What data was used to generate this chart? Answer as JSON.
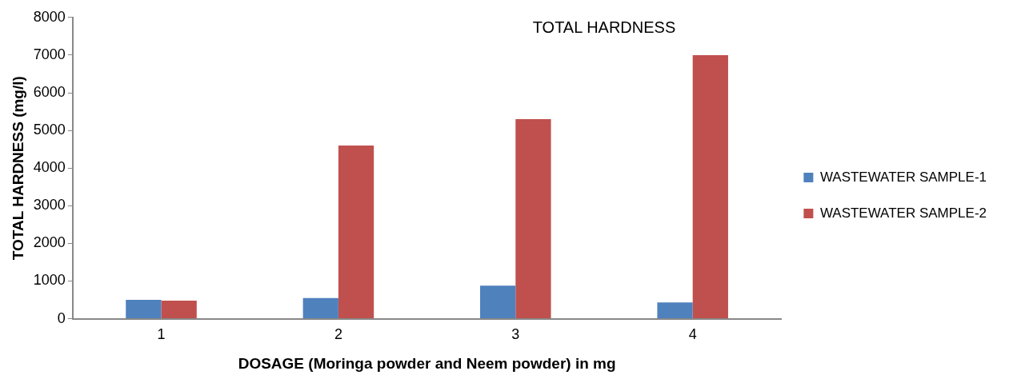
{
  "chart_data": {
    "type": "bar",
    "title": "TOTAL HARDNESS",
    "xlabel": "DOSAGE (Moringa powder and Neem powder) in mg",
    "ylabel": "TOTAL HARDNESS (mg/l)",
    "categories": [
      "1",
      "2",
      "3",
      "4"
    ],
    "series": [
      {
        "name": "WASTEWATER SAMPLE-1",
        "color": "#4f81bd",
        "values": [
          500,
          550,
          880,
          430
        ]
      },
      {
        "name": "WASTEWATER SAMPLE-2",
        "color": "#c0504d",
        "values": [
          480,
          4600,
          5300,
          7000
        ]
      }
    ],
    "ylim": [
      0,
      8000
    ],
    "yticks": [
      0,
      1000,
      2000,
      3000,
      4000,
      5000,
      6000,
      7000,
      8000
    ],
    "grid": false,
    "legend": "right"
  }
}
